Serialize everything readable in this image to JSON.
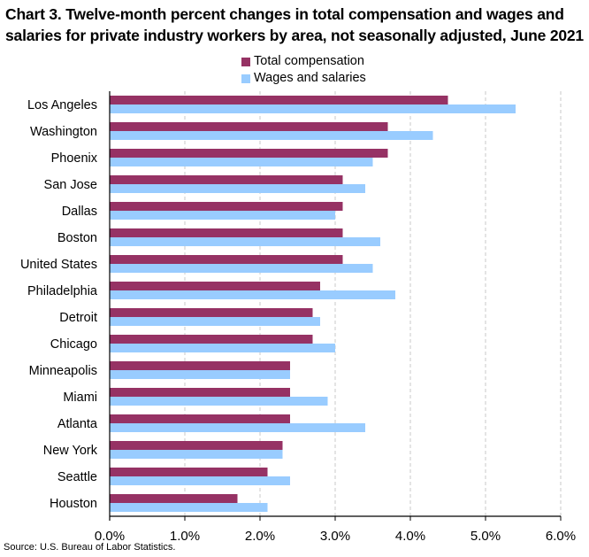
{
  "chart_data": {
    "type": "bar",
    "orientation": "horizontal",
    "title": "Chart 3. Twelve-month percent changes in total compensation and wages and salaries for private industry workers by area, not seasonally adjusted, June 2021",
    "xlabel": "",
    "ylabel": "",
    "xlim": [
      0,
      6
    ],
    "x_ticks": [
      "0.0%",
      "1.0%",
      "2.0%",
      "3.0%",
      "4.0%",
      "5.0%",
      "6.0%"
    ],
    "grid": "vertical dashed",
    "legend_position": "top",
    "categories": [
      "Los Angeles",
      "Washington",
      "Phoenix",
      "San Jose",
      "Dallas",
      "Boston",
      "United States",
      "Philadelphia",
      "Detroit",
      "Chicago",
      "Minneapolis",
      "Miami",
      "Atlanta",
      "New York",
      "Seattle",
      "Houston"
    ],
    "series": [
      {
        "name": "Total compensation",
        "color": "#963264",
        "values": [
          4.5,
          3.7,
          3.7,
          3.1,
          3.1,
          3.1,
          3.1,
          2.8,
          2.7,
          2.7,
          2.4,
          2.4,
          2.4,
          2.3,
          2.1,
          1.7
        ]
      },
      {
        "name": "Wages and salaries",
        "color": "#99ccff",
        "values": [
          5.4,
          4.3,
          3.5,
          3.4,
          3.0,
          3.6,
          3.5,
          3.8,
          2.8,
          3.0,
          2.4,
          2.9,
          3.4,
          2.3,
          2.4,
          2.1
        ]
      }
    ],
    "source": "Source: U.S. Bureau of Labor Statistics."
  }
}
